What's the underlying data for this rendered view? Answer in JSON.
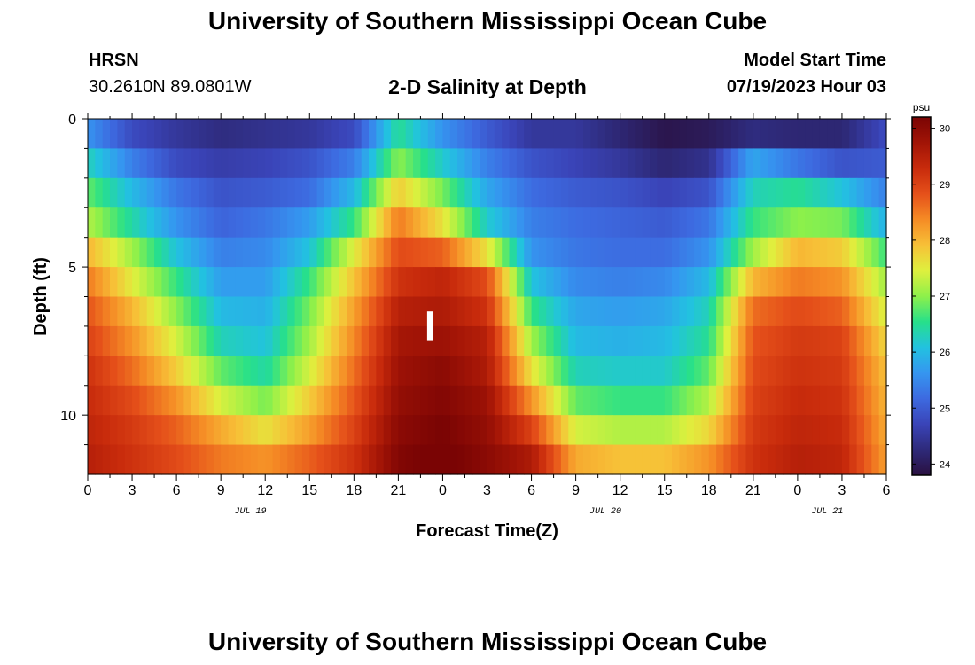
{
  "page": {
    "title_top": "University of Southern Mississippi Ocean Cube",
    "title_bottom": "University of Southern Mississippi Ocean Cube",
    "station": "HRSN",
    "coords": "30.2610N  89.0801W",
    "subtitle": "2-D Salinity at Depth",
    "model_start_label": "Model Start Time",
    "model_start_value": "07/19/2023 Hour 03"
  },
  "colors": {
    "ramp": [
      "#2a1040",
      "#2e2a7a",
      "#3a44b8",
      "#3d6ae0",
      "#3596f0",
      "#22c2e0",
      "#27e08a",
      "#8ef04a",
      "#dff03e",
      "#f7c037",
      "#f58b25",
      "#e5501a",
      "#c82b0c",
      "#a11406",
      "#7a0404"
    ]
  },
  "chart_data": {
    "type": "heatmap",
    "xlabel": "Forecast Time(Z)",
    "ylabel": "Depth (ft)",
    "x_ticks": [
      "0",
      "3",
      "6",
      "9",
      "12",
      "15",
      "18",
      "21",
      "0",
      "3",
      "6",
      "9",
      "12",
      "15",
      "18",
      "21",
      "0",
      "3",
      "6"
    ],
    "x_range_hours": [
      0,
      54
    ],
    "date_labels": [
      {
        "label": "JUL 19",
        "hour": 11
      },
      {
        "label": "JUL 20",
        "hour": 35
      },
      {
        "label": "JUL 21",
        "hour": 50
      }
    ],
    "y_ticks": [
      "0",
      "5",
      "10"
    ],
    "y_range_ft": [
      0,
      12
    ],
    "depth_layers": 12,
    "colorbar": {
      "unit": "psu",
      "min": 23.8,
      "max": 30.2,
      "ticks": [
        "24",
        "25",
        "26",
        "27",
        "28",
        "29",
        "30"
      ]
    },
    "salinity_psu": {
      "layer_centers_ft": [
        0.5,
        1.5,
        2.5,
        3.5,
        4.5,
        5.5,
        6.5,
        7.5,
        8.5,
        9.5,
        10.5,
        11.5
      ],
      "hours": [
        0,
        3,
        6,
        9,
        12,
        15,
        18,
        21,
        24,
        27,
        30,
        33,
        36,
        39,
        42,
        45,
        48,
        51,
        54
      ],
      "values": [
        [
          25.6,
          24.8,
          24.5,
          24.3,
          24.4,
          24.5,
          24.8,
          26.5,
          25.6,
          25.0,
          24.5,
          24.5,
          24.2,
          23.9,
          24.0,
          24.3,
          24.2,
          24.2,
          24.8
        ],
        [
          26.3,
          25.4,
          24.8,
          24.6,
          24.7,
          24.9,
          25.4,
          27.0,
          26.2,
          25.4,
          24.9,
          24.7,
          24.5,
          24.2,
          24.4,
          25.8,
          25.3,
          24.9,
          25.0
        ],
        [
          26.8,
          26.0,
          25.3,
          24.9,
          25.0,
          25.2,
          26.0,
          27.8,
          26.9,
          25.8,
          25.2,
          25.0,
          24.9,
          24.7,
          24.9,
          26.3,
          26.5,
          26.1,
          25.4
        ],
        [
          27.2,
          26.4,
          25.6,
          25.1,
          25.3,
          25.7,
          26.6,
          28.5,
          27.6,
          26.2,
          25.4,
          25.2,
          25.1,
          25.0,
          25.3,
          26.6,
          27.0,
          26.9,
          25.9
        ],
        [
          28.0,
          27.1,
          26.1,
          25.4,
          25.5,
          26.1,
          27.5,
          28.9,
          28.7,
          27.6,
          25.6,
          25.3,
          25.2,
          25.2,
          25.6,
          27.1,
          28.0,
          27.8,
          26.6
        ],
        [
          28.5,
          27.5,
          26.6,
          25.7,
          25.7,
          26.6,
          27.9,
          29.2,
          29.4,
          28.9,
          26.1,
          25.5,
          25.4,
          25.5,
          26.0,
          28.0,
          28.5,
          28.3,
          27.1
        ],
        [
          28.8,
          28.0,
          27.0,
          26.0,
          25.9,
          26.9,
          28.2,
          29.5,
          29.6,
          29.2,
          26.6,
          25.8,
          25.7,
          25.8,
          26.3,
          28.6,
          28.9,
          28.7,
          27.4
        ],
        [
          29.0,
          28.3,
          27.4,
          26.3,
          26.1,
          27.1,
          28.4,
          29.7,
          29.8,
          29.5,
          27.1,
          26.0,
          25.9,
          26.0,
          26.5,
          28.8,
          29.1,
          29.0,
          27.7
        ],
        [
          29.2,
          28.6,
          27.8,
          26.8,
          26.4,
          27.4,
          28.6,
          29.8,
          30.0,
          29.6,
          27.6,
          26.3,
          26.2,
          26.2,
          26.8,
          28.9,
          29.2,
          29.1,
          27.9
        ],
        [
          29.3,
          28.9,
          28.3,
          27.4,
          26.9,
          27.8,
          28.8,
          29.9,
          30.1,
          29.8,
          28.3,
          26.8,
          26.6,
          26.6,
          27.2,
          29.0,
          29.3,
          29.2,
          28.0
        ],
        [
          29.4,
          29.1,
          28.7,
          28.1,
          27.6,
          28.2,
          29.0,
          30.0,
          30.2,
          29.9,
          29.0,
          27.4,
          27.2,
          27.2,
          27.7,
          29.1,
          29.4,
          29.3,
          28.1
        ],
        [
          29.5,
          29.2,
          28.9,
          28.5,
          28.3,
          28.7,
          29.2,
          30.1,
          30.3,
          30.0,
          29.6,
          28.1,
          27.9,
          27.9,
          28.3,
          29.2,
          29.5,
          29.4,
          28.2
        ]
      ]
    }
  }
}
